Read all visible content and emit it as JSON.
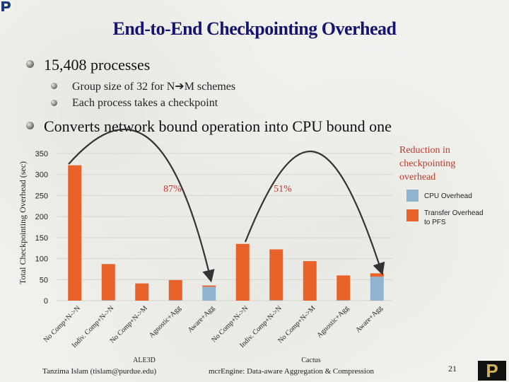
{
  "slide": {
    "title": "End-to-End Checkpointing Overhead",
    "bullets": [
      {
        "text": "15,408 processes",
        "level": 1
      },
      {
        "text": "Group size of 32 for N➔M schemes",
        "level": 2
      },
      {
        "text": "Each process takes a checkpoint",
        "level": 2
      },
      {
        "text": "Converts network bound operation into CPU bound one",
        "level": 1
      }
    ],
    "annotation": "Reduction in checkpointing overhead",
    "footer_left": "Tanzima Islam (tislam@purdue.edu)",
    "footer_center": "mcrEngine: Data-aware Aggregation & Compression",
    "page_number": "21",
    "logo_text": "P",
    "group_labels": [
      "ALE3D",
      "Cactus"
    ]
  },
  "colors": {
    "cpu": "#8fb3d0",
    "transfer": "#e8622a",
    "title": "#14146e",
    "arrow": "#333333"
  },
  "chart_data": {
    "type": "bar",
    "stacked": true,
    "ylabel": "Total Checkpointing Overhead (sec)",
    "ylim": [
      0,
      350
    ],
    "yticks": [
      0,
      50,
      100,
      150,
      200,
      250,
      300,
      350
    ],
    "categories": [
      "No Comp+N->N",
      "Indiv. Comp+N->N",
      "No Comp+N->M",
      "Agnostic+Agg",
      "Aware+Agg",
      "No Comp+N->N",
      "Indiv. Comp+N->N",
      "No Comp+N->M",
      "Agnostic+Agg",
      "Aware+Agg"
    ],
    "series": [
      {
        "name": "CPU Overhead",
        "values": [
          0,
          1,
          0,
          1,
          33,
          0,
          1,
          0,
          1,
          57
        ]
      },
      {
        "name": "Transfer Overhead to PFS",
        "values": [
          322,
          86,
          41,
          48,
          3,
          135,
          121,
          94,
          59,
          8
        ]
      }
    ],
    "legend": [
      {
        "name": "CPU Overhead",
        "key": "cpu"
      },
      {
        "name": "Transfer Overhead to PFS",
        "key": "transfer"
      }
    ],
    "annotations": [
      "87%",
      "51%"
    ]
  }
}
